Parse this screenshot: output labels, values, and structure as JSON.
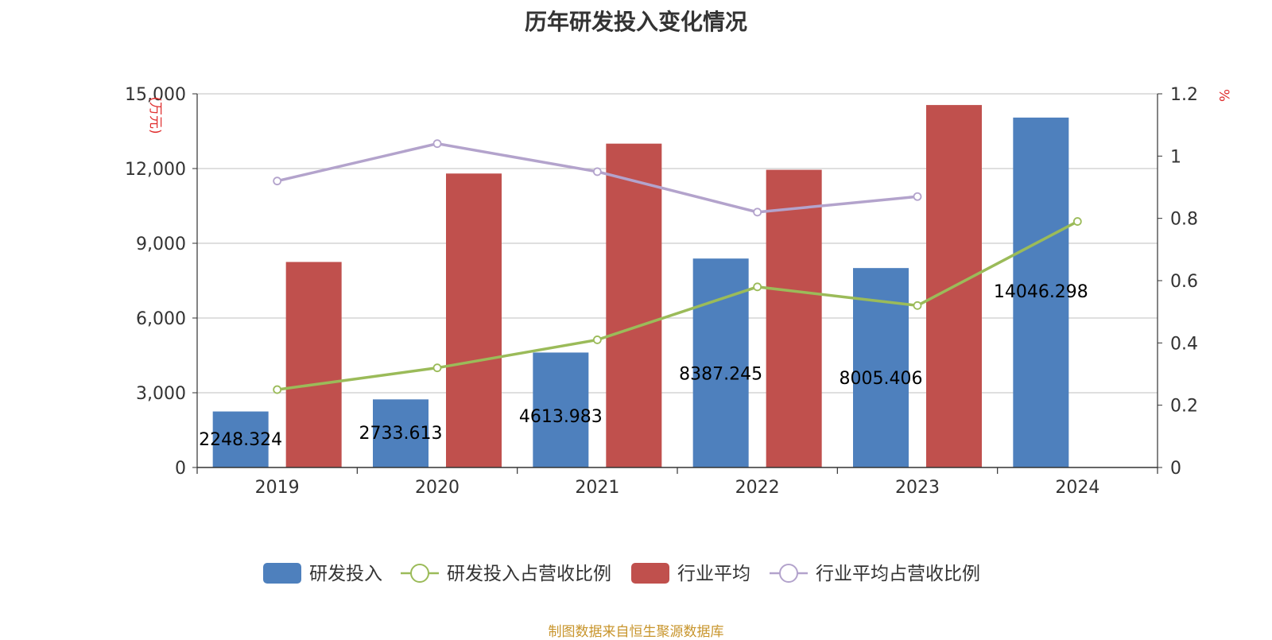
{
  "chart_data": {
    "type": "bar",
    "title": "历年研发投入变化情况",
    "categories": [
      "2019",
      "2020",
      "2021",
      "2022",
      "2023",
      "2024"
    ],
    "y_left": {
      "unit": "万元",
      "ylim": [
        0,
        15000
      ],
      "ticks": [
        0,
        3000,
        6000,
        9000,
        12000,
        15000
      ],
      "tick_labels": [
        "0",
        "3,000",
        "6,000",
        "9,000",
        "12,000",
        "15,000"
      ]
    },
    "y_right": {
      "unit": "%",
      "ylim": [
        0,
        1.2
      ],
      "ticks": [
        0,
        0.2,
        0.4,
        0.6,
        0.8,
        1,
        1.2
      ],
      "tick_labels": [
        "0",
        "0.2",
        "0.4",
        "0.6",
        "0.8",
        "1",
        "1.2"
      ]
    },
    "grid": true,
    "legend_position": "bottom",
    "series": [
      {
        "name": "研发投入",
        "kind": "bar",
        "axis": "left",
        "color": "#4e80bd",
        "values": [
          2248.324,
          2733.613,
          4613.983,
          8387.245,
          8005.406,
          14046.298
        ],
        "labels": [
          "2248.324",
          "2733.613",
          "4613.983",
          "8387.245",
          "8005.406",
          "14046.298"
        ]
      },
      {
        "name": "研发投入占营收比例",
        "kind": "line",
        "axis": "right",
        "color": "#9bbb59",
        "values": [
          0.25,
          0.32,
          0.41,
          0.58,
          0.52,
          0.79
        ]
      },
      {
        "name": "行业平均",
        "kind": "bar",
        "axis": "left",
        "color": "#c0504d",
        "values": [
          8250,
          11800,
          13000,
          11950,
          14550,
          null
        ]
      },
      {
        "name": "行业平均占营收比例",
        "kind": "line",
        "axis": "right",
        "color": "#b3a3cc",
        "values": [
          0.92,
          1.04,
          0.95,
          0.82,
          0.87,
          null
        ]
      }
    ],
    "source": "制图数据来自恒生聚源数据库"
  }
}
